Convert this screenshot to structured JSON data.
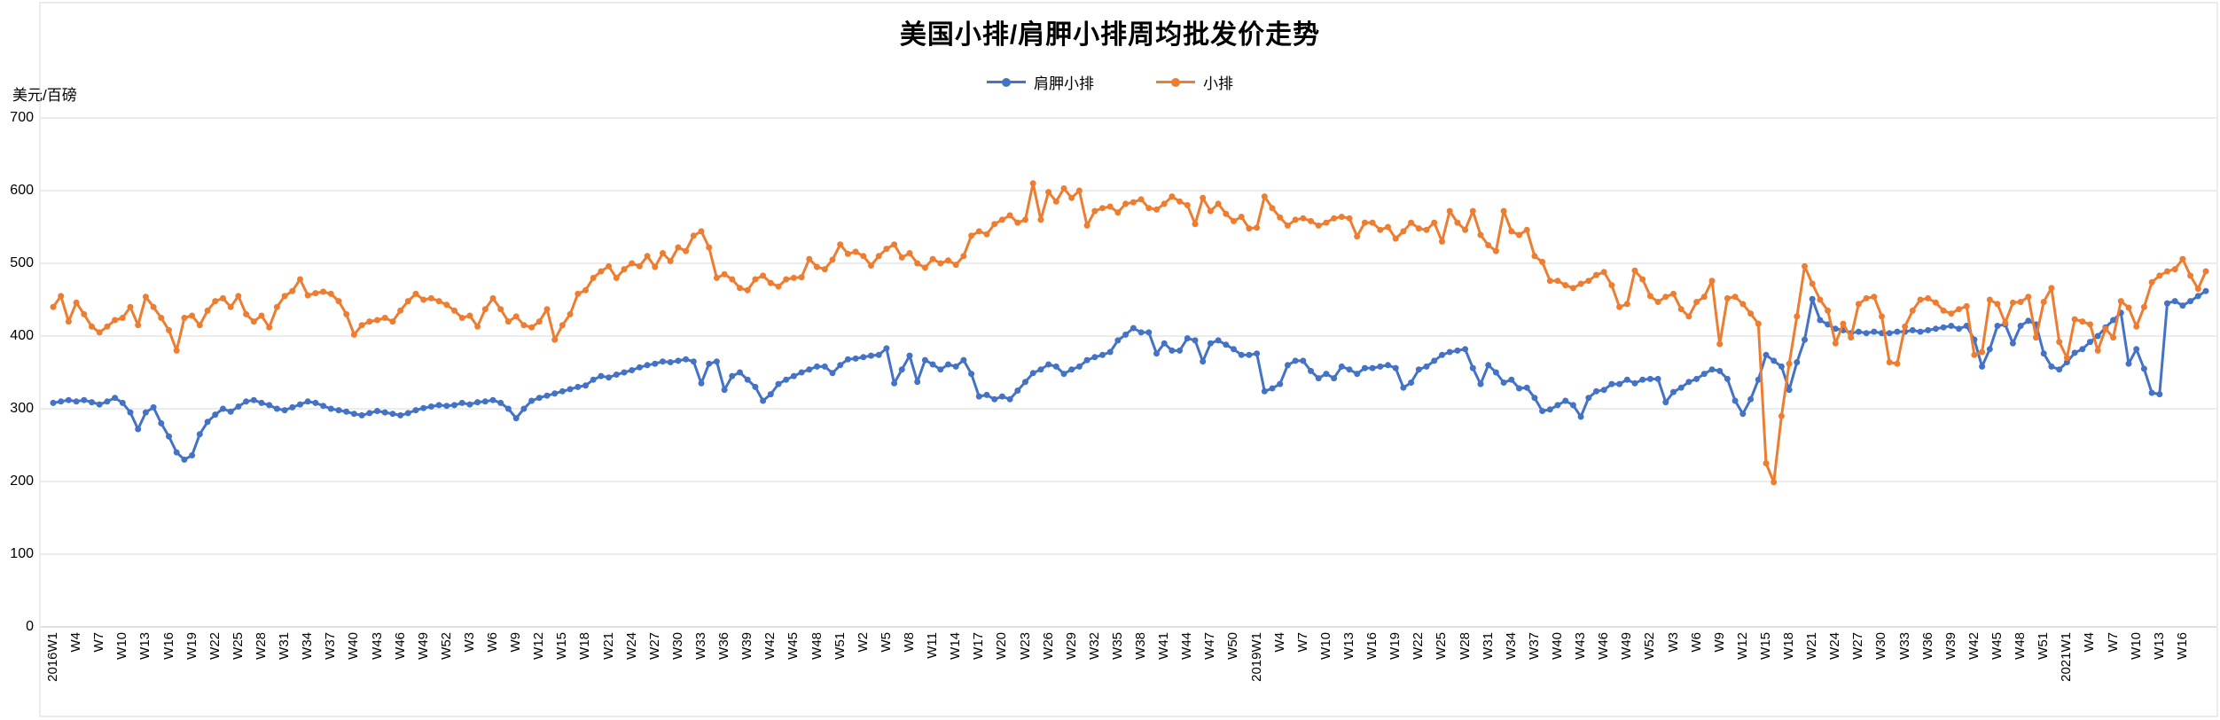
{
  "chart": {
    "title": "美国小排/肩胛小排周均批发价走势",
    "y_unit": "美元/百磅",
    "legend": [
      "肩胛小排",
      "小排"
    ]
  },
  "chart_data": {
    "type": "line",
    "title": "美国小排/肩胛小排周均批发价走势",
    "ylabel": "美元/百磅",
    "ylim": [
      0,
      700
    ],
    "y_ticks": [
      0,
      100,
      200,
      300,
      400,
      500,
      600,
      700
    ],
    "grid": true,
    "grid_color": "#d9d9d9",
    "axis_color": "#c0c0c0",
    "legend_position": "top",
    "label_every": 3,
    "x_labels": [
      "2016W1",
      "W4",
      "W7",
      "W10",
      "W13",
      "W16",
      "W19",
      "W22",
      "W25",
      "W28",
      "W31",
      "W34",
      "W37",
      "W40",
      "W43",
      "W46",
      "W49",
      "W52",
      "W3",
      "W6",
      "W9",
      "W12",
      "W15",
      "W18",
      "W21",
      "W24",
      "W27",
      "W30",
      "W33",
      "W36",
      "W39",
      "W42",
      "W45",
      "W48",
      "W51",
      "W2",
      "W5",
      "W8",
      "W11",
      "W14",
      "W17",
      "W20",
      "W23",
      "W26",
      "W29",
      "W32",
      "W35",
      "W38",
      "W41",
      "W44",
      "W47",
      "W50",
      "2019W1",
      "W4",
      "W7",
      "W10",
      "W13",
      "W16",
      "W19",
      "W22",
      "W25",
      "W28",
      "W31",
      "W34",
      "W37",
      "W40",
      "W43",
      "W46",
      "W49",
      "W52",
      "W3",
      "W6",
      "W9",
      "W12",
      "W15",
      "W18",
      "W21",
      "W24",
      "W27",
      "W30",
      "W33",
      "W36",
      "W39",
      "W42",
      "W45",
      "W48",
      "W51",
      "2021W1",
      "W4",
      "W7",
      "W10",
      "W13",
      "W16"
    ],
    "series": [
      {
        "name": "肩胛小排",
        "color": "#4472c4",
        "values": [
          308,
          310,
          312,
          310,
          312,
          309,
          306,
          310,
          315,
          308,
          295,
          272,
          295,
          302,
          280,
          262,
          240,
          230,
          236,
          265,
          282,
          292,
          300,
          296,
          303,
          310,
          312,
          308,
          305,
          300,
          298,
          302,
          306,
          310,
          308,
          304,
          300,
          298,
          296,
          293,
          291,
          294,
          297,
          295,
          293,
          291,
          294,
          298,
          301,
          303,
          305,
          304,
          305,
          308,
          306,
          309,
          310,
          312,
          308,
          300,
          287,
          300,
          311,
          315,
          318,
          321,
          324,
          327,
          330,
          332,
          340,
          345,
          343,
          347,
          350,
          353,
          357,
          360,
          362,
          365,
          364,
          366,
          368,
          365,
          335,
          362,
          365,
          326,
          345,
          350,
          340,
          330,
          311,
          320,
          334,
          340,
          345,
          350,
          354,
          358,
          358,
          349,
          360,
          368,
          369,
          371,
          373,
          374,
          383,
          335,
          354,
          373,
          337,
          367,
          361,
          354,
          361,
          358,
          367,
          348,
          317,
          319,
          313,
          317,
          313,
          325,
          337,
          349,
          354,
          361,
          358,
          348,
          354,
          358,
          367,
          371,
          374,
          378,
          394,
          402,
          411,
          405,
          405,
          376,
          390,
          380,
          380,
          397,
          394,
          365,
          390,
          394,
          388,
          382,
          374,
          374,
          376,
          324,
          328,
          334,
          360,
          366,
          366,
          352,
          342,
          348,
          342,
          358,
          354,
          348,
          356,
          356,
          358,
          360,
          356,
          329,
          336,
          354,
          358,
          366,
          374,
          378,
          380,
          382,
          356,
          334,
          360,
          350,
          336,
          340,
          328,
          329,
          315,
          297,
          299,
          305,
          311,
          305,
          289,
          315,
          324,
          326,
          334,
          334,
          340,
          335,
          340,
          341,
          341,
          309,
          323,
          329,
          337,
          341,
          348,
          354,
          352,
          341,
          311,
          293,
          313,
          340,
          374,
          366,
          358,
          326,
          364,
          395,
          451,
          422,
          416,
          410,
          408,
          404,
          406,
          404,
          406,
          404,
          404,
          406,
          406,
          408,
          406,
          408,
          410,
          412,
          414,
          410,
          414,
          395,
          358,
          382,
          414,
          416,
          390,
          414,
          421,
          416,
          376,
          358,
          354,
          364,
          377,
          382,
          392,
          400,
          412,
          422,
          432,
          362,
          382,
          355,
          322,
          320,
          445,
          448,
          442,
          448,
          455,
          462
        ]
      },
      {
        "name": "小排",
        "color": "#ed7d31",
        "values": [
          440,
          455,
          420,
          446,
          430,
          413,
          405,
          413,
          422,
          425,
          440,
          415,
          454,
          440,
          425,
          408,
          380,
          425,
          428,
          415,
          435,
          448,
          452,
          440,
          455,
          430,
          420,
          428,
          412,
          440,
          455,
          462,
          478,
          456,
          459,
          461,
          458,
          448,
          430,
          402,
          415,
          420,
          422,
          425,
          420,
          435,
          448,
          458,
          450,
          452,
          448,
          443,
          435,
          425,
          428,
          413,
          437,
          452,
          437,
          420,
          427,
          415,
          412,
          420,
          437,
          395,
          415,
          430,
          458,
          463,
          480,
          489,
          496,
          480,
          492,
          500,
          496,
          510,
          495,
          514,
          503,
          522,
          517,
          538,
          544,
          522,
          480,
          485,
          478,
          466,
          463,
          478,
          483,
          473,
          468,
          478,
          480,
          481,
          506,
          495,
          492,
          505,
          526,
          513,
          516,
          510,
          497,
          510,
          520,
          526,
          508,
          514,
          500,
          494,
          506,
          500,
          504,
          498,
          510,
          538,
          544,
          540,
          554,
          560,
          566,
          556,
          560,
          610,
          560,
          598,
          585,
          603,
          590,
          600,
          552,
          572,
          576,
          578,
          570,
          582,
          584,
          588,
          576,
          574,
          582,
          592,
          585,
          580,
          554,
          590,
          572,
          582,
          568,
          558,
          564,
          548,
          549,
          592,
          576,
          563,
          552,
          560,
          562,
          558,
          552,
          556,
          562,
          564,
          562,
          537,
          556,
          556,
          546,
          550,
          534,
          544,
          556,
          548,
          546,
          556,
          530,
          572,
          556,
          546,
          572,
          539,
          525,
          517,
          572,
          544,
          539,
          546,
          510,
          502,
          476,
          476,
          470,
          466,
          472,
          476,
          484,
          488,
          470,
          440,
          444,
          490,
          478,
          455,
          447,
          454,
          458,
          437,
          427,
          447,
          454,
          476,
          389,
          452,
          454,
          444,
          431,
          417,
          225,
          199,
          290,
          362,
          427,
          496,
          472,
          450,
          435,
          390,
          417,
          398,
          444,
          452,
          454,
          427,
          364,
          362,
          413,
          435,
          450,
          452,
          446,
          435,
          431,
          437,
          441,
          374,
          378,
          450,
          444,
          418,
          446,
          447,
          454,
          398,
          447,
          466,
          392,
          370,
          423,
          420,
          416,
          380,
          410,
          398,
          448,
          439,
          413,
          440,
          474,
          483,
          489,
          492,
          506,
          483,
          465,
          489
        ]
      }
    ]
  }
}
